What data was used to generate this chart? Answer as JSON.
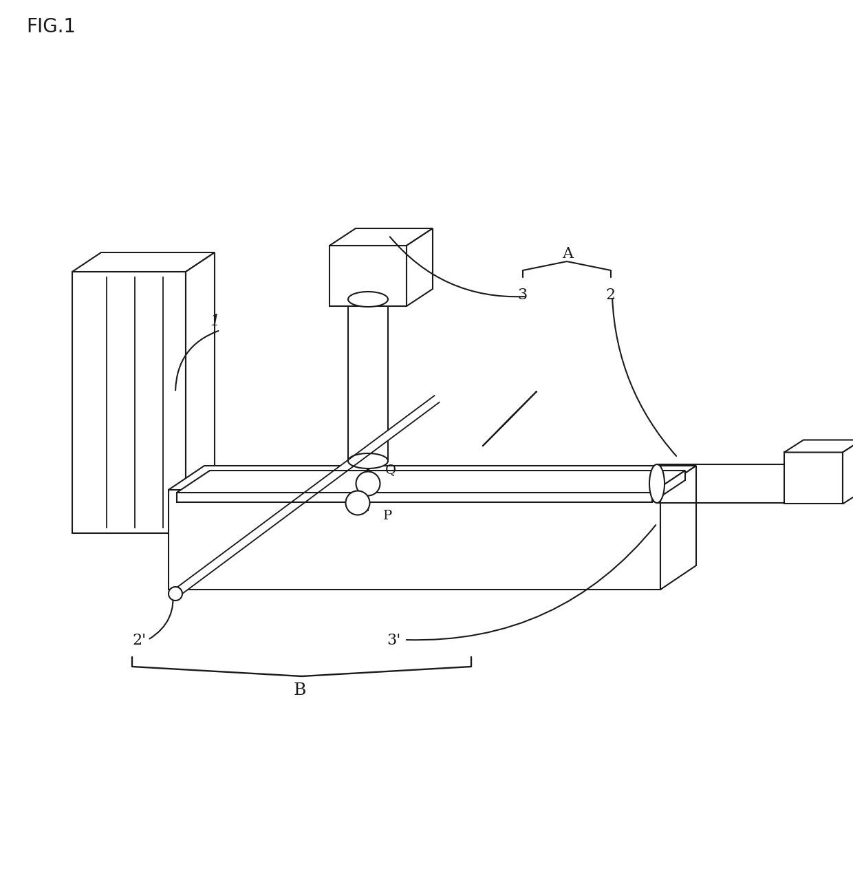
{
  "title": "FIG.1",
  "bg_color": "#ffffff",
  "line_color": "#1a1a1a",
  "label_1": "1",
  "label_2": "2",
  "label_3": "3",
  "label_A": "A",
  "label_2p": "2'",
  "label_3p": "3'",
  "label_B": "B",
  "label_P": "P",
  "label_Q": "Q",
  "fig_width": 12.4,
  "fig_height": 12.85
}
